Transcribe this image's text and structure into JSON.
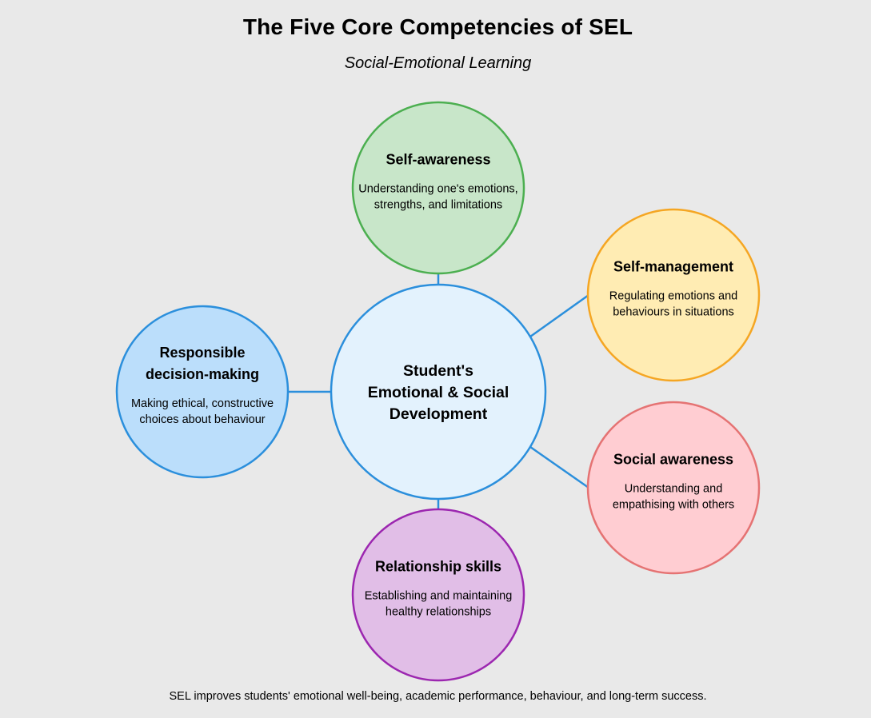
{
  "title": "The Five Core Competencies of SEL",
  "subtitle": "Social-Emotional Learning",
  "center": {
    "lines": [
      "Student's",
      "Emotional & Social",
      "Development"
    ],
    "fill": "#e3f2fd",
    "stroke": "#2b8fdc"
  },
  "competencies": [
    {
      "title_lines": [
        "Self-awareness"
      ],
      "desc_lines": [
        "Understanding one's emotions,",
        "strengths, and limitations"
      ],
      "fill": "#c8e6c9",
      "stroke": "#4caf50",
      "connector": "#2b8fdc"
    },
    {
      "title_lines": [
        "Self-management"
      ],
      "desc_lines": [
        "Regulating emotions and",
        "behaviours in situations"
      ],
      "fill": "#ffecb3",
      "stroke": "#f5a623",
      "connector": "#2b8fdc"
    },
    {
      "title_lines": [
        "Social awareness"
      ],
      "desc_lines": [
        "Understanding and",
        "empathising with others"
      ],
      "fill": "#ffcdd2",
      "stroke": "#e57373",
      "connector": "#2b8fdc"
    },
    {
      "title_lines": [
        "Relationship skills"
      ],
      "desc_lines": [
        "Establishing and maintaining",
        "healthy relationships"
      ],
      "fill": "#e1bee7",
      "stroke": "#9c27b0",
      "connector": "#2b8fdc"
    },
    {
      "title_lines": [
        "Responsible",
        "decision-making"
      ],
      "desc_lines": [
        "Making ethical, constructive",
        "choices about behaviour"
      ],
      "fill": "#bbdefb",
      "stroke": "#2b8fdc",
      "connector": "#2b8fdc"
    }
  ],
  "footer": "SEL improves students' emotional well-being, academic performance, behaviour, and long-term success."
}
